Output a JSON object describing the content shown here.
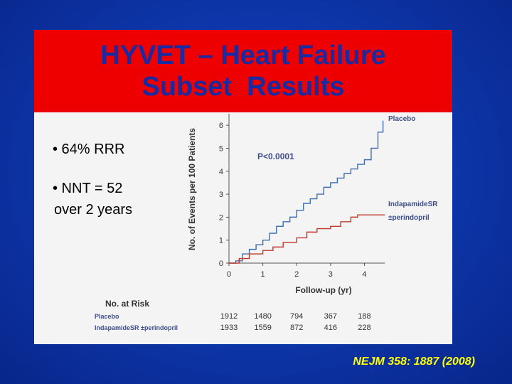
{
  "slide": {
    "title_line1": "HYVET – Heart Failure",
    "title_line2": "Subset  Results",
    "bullets": [
      "• 64% RRR",
      "• NNT = 52",
      "over 2 years"
    ],
    "citation": "NEJM 358: 1887 (2008)",
    "colors": {
      "background": "#0d35a8",
      "title_bar": "#ee0000",
      "title_text": "#1a2aa0",
      "citation_text": "#ffff00"
    }
  },
  "chart_data": {
    "type": "line",
    "ylabel": "No. of Events per 100 Patients",
    "xlabel": "Follow-up (yr)",
    "xlim": [
      0,
      4.6
    ],
    "ylim": [
      0,
      6.5
    ],
    "x_ticks": [
      0,
      1,
      2,
      3,
      4
    ],
    "y_ticks": [
      0,
      1,
      2,
      3,
      4,
      5,
      6
    ],
    "annotation": "P<0.0001",
    "series": [
      {
        "name": "Placebo",
        "color": "#3d6fb0",
        "points": [
          [
            0,
            0
          ],
          [
            0.2,
            0.1
          ],
          [
            0.4,
            0.4
          ],
          [
            0.6,
            0.6
          ],
          [
            0.8,
            0.8
          ],
          [
            1.0,
            1.0
          ],
          [
            1.2,
            1.3
          ],
          [
            1.4,
            1.6
          ],
          [
            1.6,
            1.8
          ],
          [
            1.8,
            2.0
          ],
          [
            2.0,
            2.3
          ],
          [
            2.2,
            2.6
          ],
          [
            2.4,
            2.8
          ],
          [
            2.6,
            3.0
          ],
          [
            2.8,
            3.3
          ],
          [
            3.0,
            3.5
          ],
          [
            3.2,
            3.7
          ],
          [
            3.4,
            3.9
          ],
          [
            3.6,
            4.1
          ],
          [
            3.8,
            4.3
          ],
          [
            4.0,
            4.5
          ],
          [
            4.2,
            5.0
          ],
          [
            4.4,
            5.7
          ],
          [
            4.55,
            6.2
          ]
        ]
      },
      {
        "name_line1": "IndapamideSR",
        "name_line2": "±perindopril",
        "color": "#c0392b",
        "points": [
          [
            0,
            0
          ],
          [
            0.3,
            0.2
          ],
          [
            0.6,
            0.4
          ],
          [
            1.0,
            0.55
          ],
          [
            1.3,
            0.7
          ],
          [
            1.6,
            0.9
          ],
          [
            2.0,
            1.1
          ],
          [
            2.3,
            1.35
          ],
          [
            2.6,
            1.5
          ],
          [
            3.0,
            1.6
          ],
          [
            3.3,
            1.8
          ],
          [
            3.6,
            2.0
          ],
          [
            3.8,
            2.1
          ],
          [
            4.6,
            2.1
          ]
        ]
      }
    ]
  },
  "risk_table": {
    "header": "No. at Risk",
    "rows": [
      {
        "label": "Placebo",
        "values": [
          "1912",
          "1480",
          "794",
          "367",
          "188"
        ]
      },
      {
        "label": "IndapamideSR ±perindopril",
        "values": [
          "1933",
          "1559",
          "872",
          "416",
          "228"
        ]
      }
    ]
  }
}
